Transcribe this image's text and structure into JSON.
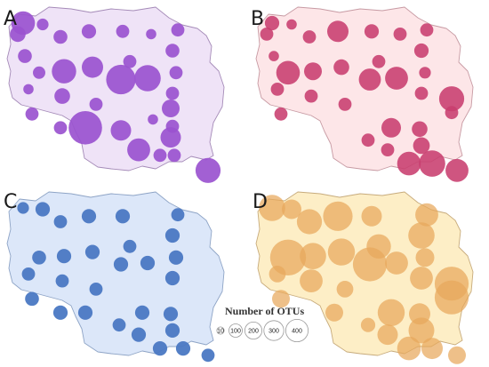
{
  "figure": {
    "panels": [
      {
        "letter": "A",
        "fill_color": "#efe3f7",
        "outline_color": "#a58bb8",
        "bubble_color": "#9a52cf",
        "bubble_opacity": 0.92,
        "sites": [
          {
            "x": 6,
            "y": 9,
            "otus": 160
          },
          {
            "x": 3,
            "y": 17,
            "otus": 70
          },
          {
            "x": 17,
            "y": 10,
            "otus": 40
          },
          {
            "x": 27,
            "y": 19,
            "otus": 55
          },
          {
            "x": 43,
            "y": 15,
            "otus": 60
          },
          {
            "x": 62,
            "y": 15,
            "otus": 50
          },
          {
            "x": 78,
            "y": 17,
            "otus": 30
          },
          {
            "x": 93,
            "y": 14,
            "otus": 50
          },
          {
            "x": 90,
            "y": 29,
            "otus": 55
          },
          {
            "x": 7,
            "y": 33,
            "otus": 55
          },
          {
            "x": 15,
            "y": 45,
            "otus": 45
          },
          {
            "x": 29,
            "y": 44,
            "otus": 170
          },
          {
            "x": 45,
            "y": 41,
            "otus": 130
          },
          {
            "x": 61,
            "y": 50,
            "otus": 250
          },
          {
            "x": 76,
            "y": 49,
            "otus": 200
          },
          {
            "x": 92,
            "y": 45,
            "otus": 50
          },
          {
            "x": 9,
            "y": 57,
            "otus": 30
          },
          {
            "x": 66,
            "y": 37,
            "otus": 50
          },
          {
            "x": 28,
            "y": 62,
            "otus": 70
          },
          {
            "x": 47,
            "y": 68,
            "otus": 50
          },
          {
            "x": 90,
            "y": 60,
            "otus": 50
          },
          {
            "x": 11,
            "y": 75,
            "otus": 50
          },
          {
            "x": 89,
            "y": 71,
            "otus": 90
          },
          {
            "x": 41,
            "y": 85,
            "otus": 320
          },
          {
            "x": 61,
            "y": 87,
            "otus": 120
          },
          {
            "x": 79,
            "y": 79,
            "otus": 30
          },
          {
            "x": 90,
            "y": 84,
            "otus": 50
          },
          {
            "x": 89,
            "y": 92,
            "otus": 120
          },
          {
            "x": 27,
            "y": 85,
            "otus": 50
          },
          {
            "x": 71,
            "y": 101,
            "otus": 150
          },
          {
            "x": 83,
            "y": 105,
            "otus": 50
          },
          {
            "x": 91,
            "y": 105,
            "otus": 50
          },
          {
            "x": 110,
            "y": 116,
            "otus": 180
          }
        ]
      },
      {
        "letter": "B",
        "fill_color": "#fde6e8",
        "outline_color": "#c79aa3",
        "bubble_color": "#c83e6e",
        "bubble_opacity": 0.88,
        "sites": [
          {
            "x": 6,
            "y": 9,
            "otus": 60
          },
          {
            "x": 3,
            "y": 17,
            "otus": 50
          },
          {
            "x": 17,
            "y": 10,
            "otus": 30
          },
          {
            "x": 27,
            "y": 19,
            "otus": 50
          },
          {
            "x": 43,
            "y": 15,
            "otus": 130
          },
          {
            "x": 62,
            "y": 15,
            "otus": 60
          },
          {
            "x": 78,
            "y": 17,
            "otus": 50
          },
          {
            "x": 93,
            "y": 14,
            "otus": 50
          },
          {
            "x": 90,
            "y": 29,
            "otus": 60
          },
          {
            "x": 7,
            "y": 33,
            "otus": 30
          },
          {
            "x": 15,
            "y": 45,
            "otus": 160
          },
          {
            "x": 29,
            "y": 44,
            "otus": 90
          },
          {
            "x": 45,
            "y": 41,
            "otus": 70
          },
          {
            "x": 61,
            "y": 50,
            "otus": 140
          },
          {
            "x": 76,
            "y": 49,
            "otus": 150
          },
          {
            "x": 92,
            "y": 45,
            "otus": 40
          },
          {
            "x": 9,
            "y": 57,
            "otus": 50
          },
          {
            "x": 66,
            "y": 37,
            "otus": 50
          },
          {
            "x": 28,
            "y": 62,
            "otus": 50
          },
          {
            "x": 47,
            "y": 68,
            "otus": 50
          },
          {
            "x": 90,
            "y": 60,
            "otus": 50
          },
          {
            "x": 107,
            "y": 64,
            "otus": 180
          },
          {
            "x": 107,
            "y": 74,
            "otus": 50
          },
          {
            "x": 11,
            "y": 75,
            "otus": 50
          },
          {
            "x": 73,
            "y": 85,
            "otus": 110
          },
          {
            "x": 89,
            "y": 86,
            "otus": 70
          },
          {
            "x": 90,
            "y": 98,
            "otus": 80
          },
          {
            "x": 60,
            "y": 94,
            "otus": 50
          },
          {
            "x": 71,
            "y": 101,
            "otus": 50
          },
          {
            "x": 83,
            "y": 111,
            "otus": 160
          },
          {
            "x": 96,
            "y": 111,
            "otus": 200
          },
          {
            "x": 110,
            "y": 116,
            "otus": 150
          }
        ]
      },
      {
        "letter": "C",
        "fill_color": "#dce7f9",
        "outline_color": "#8ea4c6",
        "bubble_color": "#4a78c3",
        "bubble_opacity": 0.95,
        "sites": [
          {
            "x": 6,
            "y": 9,
            "otus": 40
          },
          {
            "x": 17,
            "y": 10,
            "otus": 60
          },
          {
            "x": 27,
            "y": 19,
            "otus": 50
          },
          {
            "x": 43,
            "y": 15,
            "otus": 60
          },
          {
            "x": 62,
            "y": 15,
            "otus": 60
          },
          {
            "x": 93,
            "y": 14,
            "otus": 50
          },
          {
            "x": 90,
            "y": 29,
            "otus": 60
          },
          {
            "x": 15,
            "y": 45,
            "otus": 55
          },
          {
            "x": 29,
            "y": 44,
            "otus": 60
          },
          {
            "x": 45,
            "y": 41,
            "otus": 60
          },
          {
            "x": 61,
            "y": 50,
            "otus": 60
          },
          {
            "x": 76,
            "y": 49,
            "otus": 60
          },
          {
            "x": 92,
            "y": 45,
            "otus": 60
          },
          {
            "x": 9,
            "y": 57,
            "otus": 50
          },
          {
            "x": 66,
            "y": 37,
            "otus": 50
          },
          {
            "x": 28,
            "y": 62,
            "otus": 50
          },
          {
            "x": 47,
            "y": 68,
            "otus": 50
          },
          {
            "x": 90,
            "y": 60,
            "otus": 60
          },
          {
            "x": 11,
            "y": 75,
            "otus": 55
          },
          {
            "x": 73,
            "y": 85,
            "otus": 60
          },
          {
            "x": 89,
            "y": 86,
            "otus": 60
          },
          {
            "x": 90,
            "y": 98,
            "otus": 60
          },
          {
            "x": 60,
            "y": 94,
            "otus": 50
          },
          {
            "x": 41,
            "y": 85,
            "otus": 60
          },
          {
            "x": 71,
            "y": 101,
            "otus": 60
          },
          {
            "x": 27,
            "y": 85,
            "otus": 60
          },
          {
            "x": 83,
            "y": 111,
            "otus": 60
          },
          {
            "x": 96,
            "y": 111,
            "otus": 60
          },
          {
            "x": 110,
            "y": 116,
            "otus": 50
          }
        ]
      },
      {
        "letter": "D",
        "fill_color": "#fdeec6",
        "outline_color": "#c7ab7c",
        "bubble_color": "#e8a85c",
        "bubble_opacity": 0.72,
        "sites": [
          {
            "x": 6,
            "y": 9,
            "otus": 200
          },
          {
            "x": 17,
            "y": 10,
            "otus": 110
          },
          {
            "x": 27,
            "y": 19,
            "otus": 180
          },
          {
            "x": 43,
            "y": 15,
            "otus": 250
          },
          {
            "x": 62,
            "y": 15,
            "otus": 120
          },
          {
            "x": 93,
            "y": 14,
            "otus": 150
          },
          {
            "x": 90,
            "y": 29,
            "otus": 200
          },
          {
            "x": 15,
            "y": 45,
            "otus": 370
          },
          {
            "x": 29,
            "y": 44,
            "otus": 200
          },
          {
            "x": 45,
            "y": 41,
            "otus": 210
          },
          {
            "x": 61,
            "y": 50,
            "otus": 330
          },
          {
            "x": 76,
            "y": 49,
            "otus": 150
          },
          {
            "x": 92,
            "y": 45,
            "otus": 100
          },
          {
            "x": 9,
            "y": 57,
            "otus": 80
          },
          {
            "x": 66,
            "y": 37,
            "otus": 170
          },
          {
            "x": 28,
            "y": 62,
            "otus": 150
          },
          {
            "x": 47,
            "y": 68,
            "otus": 80
          },
          {
            "x": 90,
            "y": 60,
            "otus": 150
          },
          {
            "x": 107,
            "y": 64,
            "otus": 330
          },
          {
            "x": 107,
            "y": 74,
            "otus": 330
          },
          {
            "x": 11,
            "y": 75,
            "otus": 90
          },
          {
            "x": 73,
            "y": 85,
            "otus": 210
          },
          {
            "x": 89,
            "y": 86,
            "otus": 130
          },
          {
            "x": 90,
            "y": 98,
            "otus": 190
          },
          {
            "x": 60,
            "y": 94,
            "otus": 60
          },
          {
            "x": 41,
            "y": 85,
            "otus": 90
          },
          {
            "x": 71,
            "y": 101,
            "otus": 120
          },
          {
            "x": 83,
            "y": 111,
            "otus": 160
          },
          {
            "x": 96,
            "y": 111,
            "otus": 130
          },
          {
            "x": 110,
            "y": 116,
            "otus": 90
          }
        ]
      }
    ]
  },
  "legend": {
    "title": "Number of OTUs",
    "values": [
      10,
      100,
      200,
      300,
      400
    ],
    "labels": [
      "10",
      "100",
      "200",
      "300",
      "400"
    ]
  }
}
